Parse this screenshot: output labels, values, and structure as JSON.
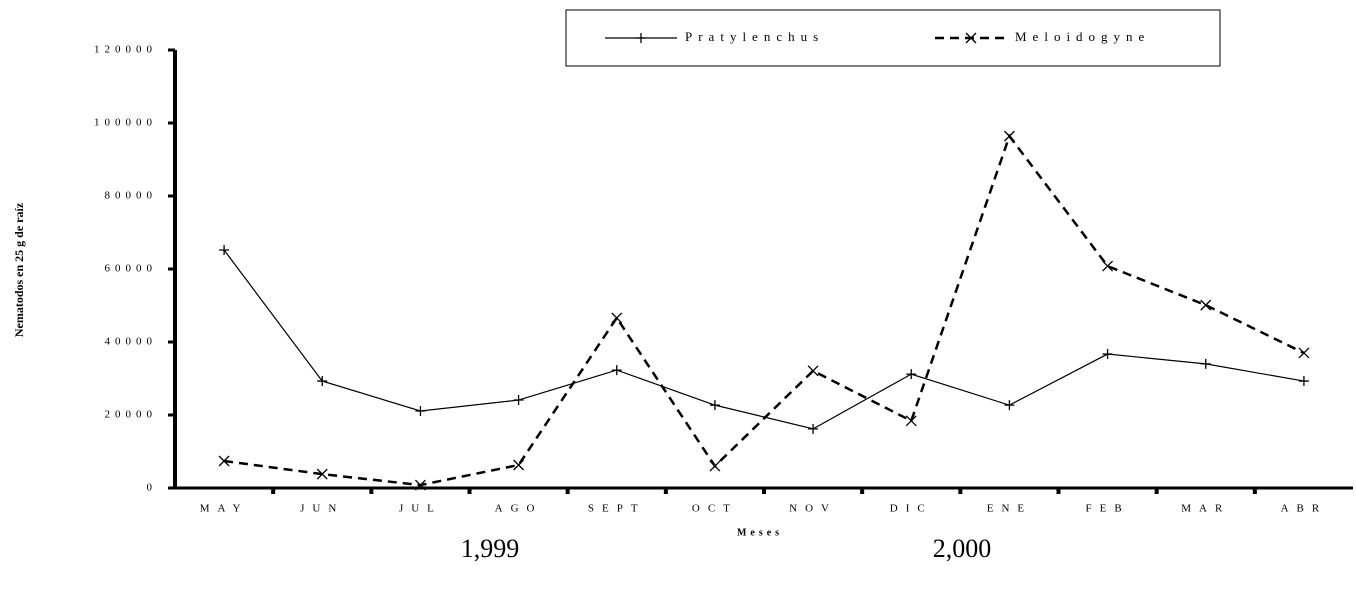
{
  "chart_data": {
    "type": "line",
    "y_label": "Nematodos en 25 g de raíz",
    "x_label": "Meses",
    "categories": [
      "MAY",
      "JUN",
      "JUL",
      "AGO",
      "SEPT",
      "OCT",
      "NOV",
      "DIC",
      "ENE",
      "FEB",
      "MAR",
      "ABR"
    ],
    "series": [
      {
        "name": "Pratylenchus",
        "color": "#000000",
        "dash": "solid",
        "marker": "plus",
        "values": [
          65200,
          29300,
          21100,
          24100,
          32300,
          22700,
          16200,
          31200,
          22700,
          36700,
          34000,
          29300
        ]
      },
      {
        "name": "Meloidogyne",
        "color": "#000000",
        "dash": "dashed",
        "marker": "x",
        "values": [
          7400,
          3800,
          800,
          6300,
          46600,
          6000,
          32100,
          18400,
          96400,
          60800,
          50100,
          37000
        ]
      }
    ],
    "ylim": [
      0,
      120000
    ],
    "yticks": [
      0,
      20000,
      40000,
      60000,
      80000,
      100000,
      120000
    ],
    "annotations": [
      "1,999",
      "2,000"
    ],
    "legend": "top"
  }
}
